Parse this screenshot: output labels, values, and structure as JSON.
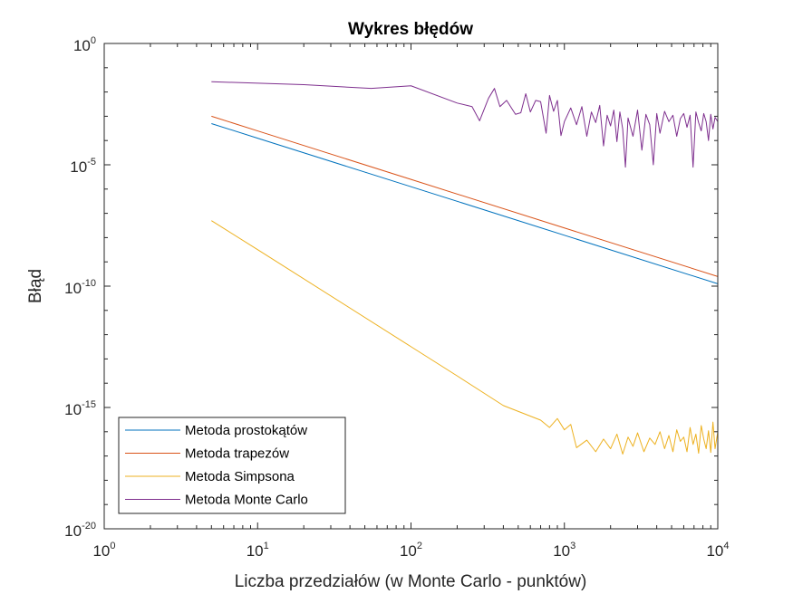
{
  "chart_data": {
    "type": "line",
    "title": "Wykres błędów",
    "xlabel": "Liczba przedziałów (w Monte Carlo - punktów)",
    "ylabel": "Błąd",
    "x_scale": "log",
    "y_scale": "log",
    "xlim": [
      1,
      10000
    ],
    "ylim": [
      1e-20,
      1
    ],
    "xticks": [
      {
        "base": "10",
        "exp": "0",
        "value": 1
      },
      {
        "base": "10",
        "exp": "1",
        "value": 10
      },
      {
        "base": "10",
        "exp": "2",
        "value": 100
      },
      {
        "base": "10",
        "exp": "3",
        "value": 1000
      },
      {
        "base": "10",
        "exp": "4",
        "value": 10000
      }
    ],
    "yticks": [
      {
        "base": "10",
        "exp": "0",
        "value": 1
      },
      {
        "base": "10",
        "exp": "-5",
        "value": 1e-05
      },
      {
        "base": "10",
        "exp": "-10",
        "value": 1e-10
      },
      {
        "base": "10",
        "exp": "-15",
        "value": 1e-15
      },
      {
        "base": "10",
        "exp": "-20",
        "value": 1e-20
      }
    ],
    "grid": false,
    "box": true,
    "legend_position": "bottom-left",
    "series": [
      {
        "name": "Metoda prostokątów",
        "color": "#0072BD",
        "x": [
          5,
          10,
          100,
          1000,
          10000
        ],
        "y": [
          0.0005,
          0.000125,
          1.25e-06,
          1.25e-08,
          1.25e-10
        ]
      },
      {
        "name": "Metoda trapezów",
        "color": "#D95319",
        "x": [
          5,
          10,
          100,
          1000,
          10000
        ],
        "y": [
          0.001,
          0.00025,
          2.5e-06,
          2.5e-08,
          2.5e-10
        ]
      },
      {
        "name": "Metoda Simpsona",
        "color": "#EDB120",
        "x": [
          5,
          10,
          100,
          200,
          400,
          700,
          800,
          900,
          1000,
          1100,
          1200,
          1400,
          1600,
          1800,
          2000,
          2200,
          2400,
          2600,
          2800,
          3000,
          3300,
          3600,
          3900,
          4200,
          4500,
          4800,
          5100,
          5400,
          5700,
          6000,
          6300,
          6600,
          6900,
          7200,
          7500,
          7800,
          8100,
          8400,
          8700,
          9000,
          9300,
          9600,
          10000
        ],
        "y": [
          5e-08,
          3.2e-09,
          3.2e-13,
          2e-14,
          1.2e-15,
          3e-16,
          1.5e-16,
          3.5e-16,
          1.2e-16,
          2e-16,
          2.2e-17,
          4.5e-17,
          1.5e-17,
          5e-17,
          2e-17,
          8e-17,
          1.2e-17,
          6e-17,
          2.5e-17,
          9e-17,
          1.5e-17,
          5.5e-17,
          3e-17,
          1e-16,
          2e-17,
          7e-17,
          1.5e-17,
          1.2e-16,
          4e-17,
          6e-17,
          1.5e-17,
          1.5e-16,
          3e-17,
          8e-17,
          1.3e-17,
          1.8e-16,
          5e-17,
          2e-17,
          1.1e-16,
          1.4e-17,
          2.5e-16,
          2e-17,
          1e-16
        ]
      },
      {
        "name": "Metoda Monte Carlo",
        "color": "#7E2F8E",
        "x": [
          5,
          20,
          55,
          100,
          200,
          250,
          280,
          320,
          350,
          380,
          420,
          480,
          520,
          560,
          600,
          650,
          700,
          760,
          800,
          850,
          900,
          950,
          1000,
          1100,
          1200,
          1300,
          1400,
          1500,
          1600,
          1700,
          1800,
          1900,
          2000,
          2100,
          2200,
          2300,
          2400,
          2500,
          2600,
          2800,
          3000,
          3200,
          3400,
          3600,
          3800,
          4000,
          4200,
          4500,
          4800,
          5100,
          5400,
          5700,
          6000,
          6300,
          6600,
          6900,
          7200,
          7500,
          7800,
          8100,
          8400,
          8700,
          9000,
          9300,
          9600,
          10000
        ],
        "y": [
          0.0265,
          0.02,
          0.014,
          0.018,
          0.0035,
          0.0025,
          0.00065,
          0.0055,
          0.014,
          0.0025,
          0.0045,
          0.0012,
          0.0014,
          0.0085,
          0.0015,
          0.0045,
          0.004,
          0.0002,
          0.0072,
          0.0016,
          0.0045,
          0.00016,
          0.0006,
          0.0022,
          0.00045,
          0.0025,
          0.00015,
          0.0015,
          0.00055,
          0.0028,
          6e-05,
          0.0011,
          0.0004,
          0.0018,
          9e-05,
          0.0015,
          0.0003,
          8e-06,
          0.00085,
          0.00015,
          0.0018,
          4e-05,
          0.0012,
          0.00045,
          1e-05,
          0.0013,
          0.0002,
          0.0016,
          0.0006,
          0.0011,
          0.00015,
          0.0008,
          0.0013,
          0.00035,
          0.0011,
          8e-06,
          0.0015,
          0.00055,
          0.00025,
          0.0013,
          0.0006,
          0.0001,
          0.0012,
          0.0003,
          0.0009,
          0.0006
        ]
      }
    ]
  }
}
